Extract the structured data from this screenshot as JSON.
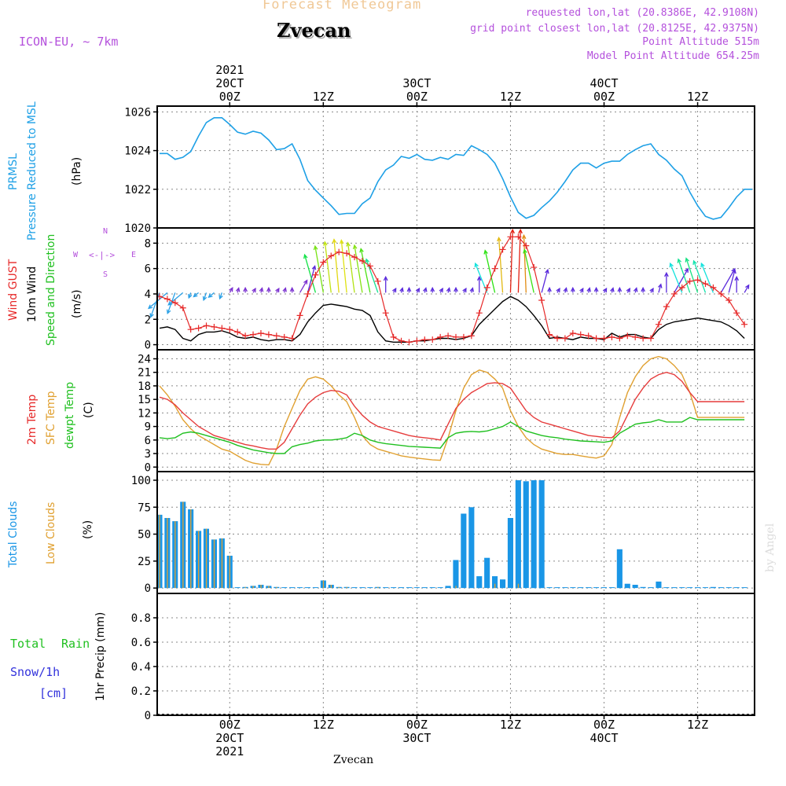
{
  "header": {
    "title": "Forecast Meteogram",
    "location": "Zvecan",
    "model": "ICON-EU, ~ 7km",
    "requested_point": "requested lon,lat (20.8386E, 42.9108N)",
    "grid_point": "grid point closest lon,lat (20.8125E, 42.9375N)",
    "point_altitude": "Point Altitude 515m",
    "model_altitude": "Model Point Altitude 654.25m",
    "footer_location": "Zvecan",
    "credit": "by Angel"
  },
  "time_axis": {
    "top_ticks": [
      {
        "h": 0,
        "lines": [
          "2021",
          "20CT",
          "00Z"
        ]
      },
      {
        "h": 12,
        "lines": [
          "12Z"
        ]
      },
      {
        "h": 24,
        "lines": [
          "30CT",
          "00Z"
        ]
      },
      {
        "h": 36,
        "lines": [
          "12Z"
        ]
      },
      {
        "h": 48,
        "lines": [
          "40CT",
          "00Z"
        ]
      },
      {
        "h": 60,
        "lines": [
          "12Z"
        ]
      }
    ],
    "bottom_ticks": [
      {
        "h": 0,
        "lines": [
          "00Z",
          "20CT",
          "2021"
        ]
      },
      {
        "h": 12,
        "lines": [
          "12Z"
        ]
      },
      {
        "h": 24,
        "lines": [
          "00Z",
          "30CT"
        ]
      },
      {
        "h": 36,
        "lines": [
          "12Z"
        ]
      },
      {
        "h": 48,
        "lines": [
          "00Z",
          "40CT"
        ]
      },
      {
        "h": 60,
        "lines": [
          "12Z"
        ]
      }
    ]
  },
  "panel_labels": {
    "pressure": [
      "PRMSL",
      "Pressure Reduced to MSL",
      "(hPa)"
    ],
    "wind": [
      "Wind GUST",
      "10m Wind",
      "Speed and Direction",
      "(m/s)"
    ],
    "compass": [
      "N",
      "S",
      "W",
      "E"
    ],
    "temp": [
      "2m Temp",
      "SFC Temp",
      "dewpt Temp",
      "(C)"
    ],
    "clouds": [
      "Total Clouds",
      "Low Clouds",
      "(%)"
    ],
    "precip": [
      "Total",
      "Rain",
      "Snow/1h",
      "[cm]",
      "1hr Precip (mm)"
    ]
  },
  "colors": {
    "pressure": "#1ea0e6",
    "gust": "#e62828",
    "wind": "#000000",
    "temp2m": "#e63c3c",
    "sfc": "#e0a030",
    "dewpt": "#20c020",
    "total_clouds": "#1a96e6",
    "low_clouds": "#e0a030",
    "meta": "#b450dc",
    "title": "#f0c896",
    "rain": "#20c020",
    "snow": "#3232dc"
  },
  "chart_data": [
    {
      "type": "line",
      "name": "pressure",
      "ylim": [
        1020,
        1026.3
      ],
      "yticks": [
        1020,
        1022,
        1024,
        1026
      ],
      "x_hours": [
        -9,
        -8,
        -7,
        -6,
        -5,
        -4,
        -3,
        -2,
        -1,
        0,
        1,
        2,
        3,
        4,
        5,
        6,
        7,
        8,
        9,
        10,
        11,
        12,
        13,
        14,
        15,
        16,
        17,
        18,
        19,
        20,
        21,
        22,
        23,
        24,
        25,
        26,
        27,
        28,
        29,
        30,
        31,
        32,
        33,
        34,
        35,
        36,
        37,
        38,
        39,
        40,
        41,
        42,
        43,
        44,
        45,
        46,
        47,
        48,
        49,
        50,
        51,
        52,
        53,
        54,
        55,
        56,
        57,
        58,
        59,
        60,
        61,
        62,
        63,
        64,
        65,
        66,
        67
      ],
      "series": [
        {
          "values": [
            1023.85,
            1023.85,
            1023.55,
            1023.65,
            1023.95,
            1024.75,
            1025.45,
            1025.7,
            1025.7,
            1025.35,
            1024.95,
            1024.85,
            1025.0,
            1024.9,
            1024.55,
            1024.05,
            1024.1,
            1024.35,
            1023.55,
            1022.45,
            1021.95,
            1021.55,
            1021.15,
            1020.7,
            1020.75,
            1020.75,
            1021.25,
            1021.55,
            1022.4,
            1023.0,
            1023.25,
            1023.7,
            1023.6,
            1023.8,
            1023.55,
            1023.5,
            1023.65,
            1023.55,
            1023.8,
            1023.75,
            1024.25,
            1024.05,
            1023.8,
            1023.35,
            1022.55,
            1021.6,
            1020.8,
            1020.5,
            1020.65,
            1021.05,
            1021.4,
            1021.85,
            1022.4,
            1023.0,
            1023.35,
            1023.35,
            1023.1,
            1023.35,
            1023.45,
            1023.45,
            1023.8,
            1024.05,
            1024.25,
            1024.35,
            1023.8,
            1023.5,
            1023.05,
            1022.7,
            1021.85,
            1021.15,
            1020.6,
            1020.45,
            1020.55,
            1021.05,
            1021.6,
            1022.0,
            1022.0
          ]
        }
      ]
    },
    {
      "type": "line",
      "name": "wind",
      "ylim": [
        -0.4,
        9.2
      ],
      "yticks": [
        0,
        2,
        4,
        6,
        8
      ],
      "x_hours": [
        -9,
        -8,
        -7,
        -6,
        -5,
        -4,
        -3,
        -2,
        -1,
        0,
        1,
        2,
        3,
        4,
        5,
        6,
        7,
        8,
        9,
        10,
        11,
        12,
        13,
        14,
        15,
        16,
        17,
        18,
        19,
        20,
        21,
        22,
        23,
        24,
        25,
        26,
        27,
        28,
        29,
        30,
        31,
        32,
        33,
        34,
        35,
        36,
        37,
        38,
        39,
        40,
        41,
        42,
        43,
        44,
        45,
        46,
        47,
        48,
        49,
        50,
        51,
        52,
        53,
        54,
        55,
        56,
        57,
        58,
        59,
        60,
        61,
        62,
        63,
        64,
        65,
        66
      ],
      "series": [
        {
          "name": "Wind GUST",
          "values": [
            3.8,
            3.6,
            3.3,
            2.9,
            1.2,
            1.3,
            1.5,
            1.4,
            1.3,
            1.2,
            1.0,
            0.7,
            0.8,
            0.9,
            0.8,
            0.7,
            0.6,
            0.5,
            2.3,
            4.0,
            5.5,
            6.5,
            7.0,
            7.3,
            7.2,
            6.9,
            6.6,
            6.2,
            5.0,
            2.5,
            0.6,
            0.3,
            0.2,
            0.3,
            0.4,
            0.4,
            0.6,
            0.7,
            0.6,
            0.6,
            0.7,
            2.5,
            4.5,
            6.0,
            7.5,
            8.5,
            8.5,
            7.8,
            6.1,
            3.5,
            0.8,
            0.5,
            0.5,
            0.9,
            0.8,
            0.7,
            0.5,
            0.5,
            0.6,
            0.5,
            0.7,
            0.6,
            0.5,
            0.5,
            1.6,
            3.0,
            4.0,
            4.5,
            5.0,
            5.1,
            4.8,
            4.5,
            4.0,
            3.5,
            2.5,
            1.6
          ]
        },
        {
          "name": "10m Wind",
          "values": [
            1.3,
            1.4,
            1.2,
            0.5,
            0.3,
            0.8,
            1.0,
            1.0,
            1.1,
            0.9,
            0.6,
            0.5,
            0.6,
            0.4,
            0.3,
            0.4,
            0.4,
            0.3,
            0.8,
            1.8,
            2.5,
            3.1,
            3.2,
            3.1,
            3.0,
            2.8,
            2.7,
            2.3,
            1.0,
            0.3,
            0.2,
            0.2,
            0.2,
            0.3,
            0.3,
            0.4,
            0.5,
            0.5,
            0.4,
            0.5,
            0.7,
            1.6,
            2.2,
            2.8,
            3.4,
            3.8,
            3.5,
            3.0,
            2.3,
            1.5,
            0.5,
            0.6,
            0.5,
            0.4,
            0.6,
            0.5,
            0.5,
            0.4,
            0.9,
            0.6,
            0.8,
            0.8,
            0.6,
            0.5,
            1.2,
            1.6,
            1.8,
            1.9,
            2.0,
            2.1,
            2.0,
            1.9,
            1.8,
            1.5,
            1.1,
            0.5
          ]
        }
      ],
      "arrow_baseline": 4.1,
      "arrow_scale_per_ms": 1.0
    },
    {
      "type": "line",
      "name": "temperature",
      "ylim": [
        -1,
        26
      ],
      "yticks": [
        0,
        3,
        6,
        9,
        12,
        15,
        18,
        21,
        24
      ],
      "x_hours": [
        -9,
        -8,
        -7,
        -6,
        -5,
        -4,
        -3,
        -2,
        -1,
        0,
        1,
        2,
        3,
        4,
        5,
        6,
        7,
        8,
        9,
        10,
        11,
        12,
        13,
        14,
        15,
        16,
        17,
        18,
        19,
        20,
        21,
        22,
        23,
        24,
        25,
        26,
        27,
        28,
        29,
        30,
        31,
        32,
        33,
        34,
        35,
        36,
        37,
        38,
        39,
        40,
        41,
        42,
        43,
        44,
        45,
        46,
        47,
        48,
        49,
        50,
        51,
        52,
        53,
        54,
        55,
        56,
        57,
        58,
        59,
        60,
        61,
        62,
        63,
        64,
        65,
        66
      ],
      "series": [
        {
          "name": "2m Temp",
          "values": [
            15.5,
            15.0,
            13.8,
            12.0,
            10.5,
            9.0,
            8.0,
            7.0,
            6.5,
            6.0,
            5.5,
            5.0,
            4.7,
            4.3,
            4.0,
            4.0,
            5.5,
            8.5,
            11.5,
            14.0,
            15.5,
            16.5,
            17.0,
            16.8,
            16.0,
            13.5,
            11.5,
            10.0,
            9.0,
            8.5,
            8.0,
            7.5,
            7.0,
            6.7,
            6.5,
            6.3,
            6.0,
            9.5,
            13.0,
            15.0,
            16.5,
            17.5,
            18.5,
            18.7,
            18.5,
            17.5,
            15.0,
            12.5,
            11.0,
            10.0,
            9.5,
            9.0,
            8.5,
            8.0,
            7.5,
            7.0,
            6.8,
            6.6,
            6.5,
            8.0,
            11.5,
            15.0,
            17.5,
            19.5,
            20.5,
            21.0,
            20.5,
            19.0,
            16.5,
            14.5,
            14.5,
            14.5,
            14.5,
            14.5,
            14.5,
            14.5
          ]
        },
        {
          "name": "SFC Temp",
          "values": [
            18.0,
            16.0,
            13.5,
            10.5,
            8.5,
            7.0,
            6.0,
            5.0,
            4.0,
            3.5,
            2.5,
            1.5,
            0.9,
            0.6,
            0.5,
            4.0,
            9.0,
            13.0,
            17.0,
            19.5,
            20.0,
            19.5,
            18.0,
            16.0,
            14.5,
            11.0,
            7.0,
            5.0,
            4.0,
            3.5,
            3.0,
            2.5,
            2.2,
            2.0,
            1.8,
            1.6,
            1.5,
            6.5,
            12.5,
            17.5,
            20.5,
            21.5,
            21.0,
            19.5,
            17.5,
            12.5,
            9.0,
            6.5,
            5.0,
            4.0,
            3.5,
            3.0,
            2.8,
            2.8,
            2.5,
            2.2,
            2.0,
            2.5,
            5.0,
            11.0,
            16.5,
            20.0,
            22.5,
            24.0,
            24.5,
            24.0,
            22.5,
            20.5,
            16.5,
            11.0,
            11.0,
            11.0,
            11.0,
            11.0,
            11.0,
            11.0
          ]
        },
        {
          "name": "dewpt Temp",
          "values": [
            6.5,
            6.3,
            6.5,
            7.5,
            7.8,
            7.5,
            7.0,
            6.5,
            6.0,
            5.5,
            4.8,
            4.3,
            3.8,
            3.5,
            3.2,
            3.0,
            3.0,
            4.5,
            5.0,
            5.3,
            5.8,
            6.0,
            6.0,
            6.2,
            6.5,
            7.5,
            7.0,
            6.0,
            5.5,
            5.2,
            5.0,
            4.8,
            4.6,
            4.5,
            4.4,
            4.3,
            4.2,
            6.5,
            7.5,
            7.8,
            7.9,
            7.8,
            8.0,
            8.5,
            9.0,
            10.0,
            9.0,
            8.0,
            7.5,
            7.0,
            6.7,
            6.5,
            6.2,
            6.0,
            5.8,
            5.7,
            5.6,
            5.5,
            5.8,
            7.5,
            8.5,
            9.5,
            9.8,
            10.0,
            10.5,
            10.0,
            10.0,
            10.0,
            11.0,
            10.5,
            10.5,
            10.5,
            10.5,
            10.5,
            10.5,
            10.5
          ]
        }
      ]
    },
    {
      "type": "bar",
      "name": "clouds",
      "ylim": [
        -5,
        108
      ],
      "yticks": [
        0,
        25,
        50,
        75,
        100
      ],
      "x_hours": [
        -9,
        -8,
        -7,
        -6,
        -5,
        -4,
        -3,
        -2,
        -1,
        0,
        1,
        2,
        3,
        4,
        5,
        6,
        7,
        8,
        9,
        10,
        11,
        12,
        13,
        14,
        15,
        16,
        17,
        18,
        19,
        20,
        21,
        22,
        23,
        24,
        25,
        26,
        27,
        28,
        29,
        30,
        31,
        32,
        33,
        34,
        35,
        36,
        37,
        38,
        39,
        40,
        41,
        42,
        43,
        44,
        45,
        46,
        47,
        48,
        49,
        50,
        51,
        52,
        53,
        54,
        55,
        56,
        57,
        58,
        59,
        60,
        61,
        62,
        63,
        64,
        65,
        66
      ],
      "series": [
        {
          "name": "Total Clouds",
          "values": [
            68,
            65,
            62,
            80,
            73,
            53,
            55,
            45,
            46,
            30,
            0,
            1,
            2,
            3,
            2,
            1,
            0,
            0,
            0,
            0,
            0,
            7,
            3,
            1,
            1,
            0,
            0,
            0,
            1,
            0,
            0,
            0,
            0,
            0,
            0,
            0,
            0,
            2,
            26,
            69,
            75,
            11,
            28,
            11,
            8,
            65,
            100,
            99,
            100,
            100,
            0,
            0,
            0,
            0,
            0,
            0,
            0,
            0,
            0,
            36,
            4,
            3,
            1,
            0,
            6,
            0,
            0,
            0,
            0,
            0,
            0,
            1,
            0,
            0,
            0,
            0
          ]
        },
        {
          "name": "Low Clouds",
          "values": [
            68,
            65,
            62,
            80,
            73,
            53,
            55,
            45,
            46,
            30,
            0,
            1,
            2,
            3,
            2,
            1,
            0,
            0,
            0,
            0,
            0,
            7,
            3,
            1,
            1,
            0,
            0,
            0,
            1,
            0,
            0,
            0,
            0,
            0,
            0,
            0,
            0,
            0,
            2,
            0,
            0,
            0,
            0,
            4,
            0,
            0,
            4,
            0,
            0,
            0,
            0,
            0,
            0,
            0,
            0,
            0,
            0,
            0,
            0,
            0,
            0,
            0,
            0,
            0,
            0,
            0,
            0,
            0,
            0,
            0,
            0,
            0,
            0,
            0,
            0,
            0
          ]
        }
      ]
    },
    {
      "type": "bar",
      "name": "precip",
      "ylim": [
        0,
        1.0
      ],
      "yticks": [
        0,
        0.2,
        0.4,
        0.6,
        0.8
      ],
      "ytick_labels": [
        "0",
        "0.2",
        "0.4",
        "0.6",
        "0.8"
      ],
      "series": [
        {
          "name": "Total Rain",
          "values": []
        },
        {
          "name": "Snow/1h",
          "values": []
        }
      ]
    }
  ]
}
